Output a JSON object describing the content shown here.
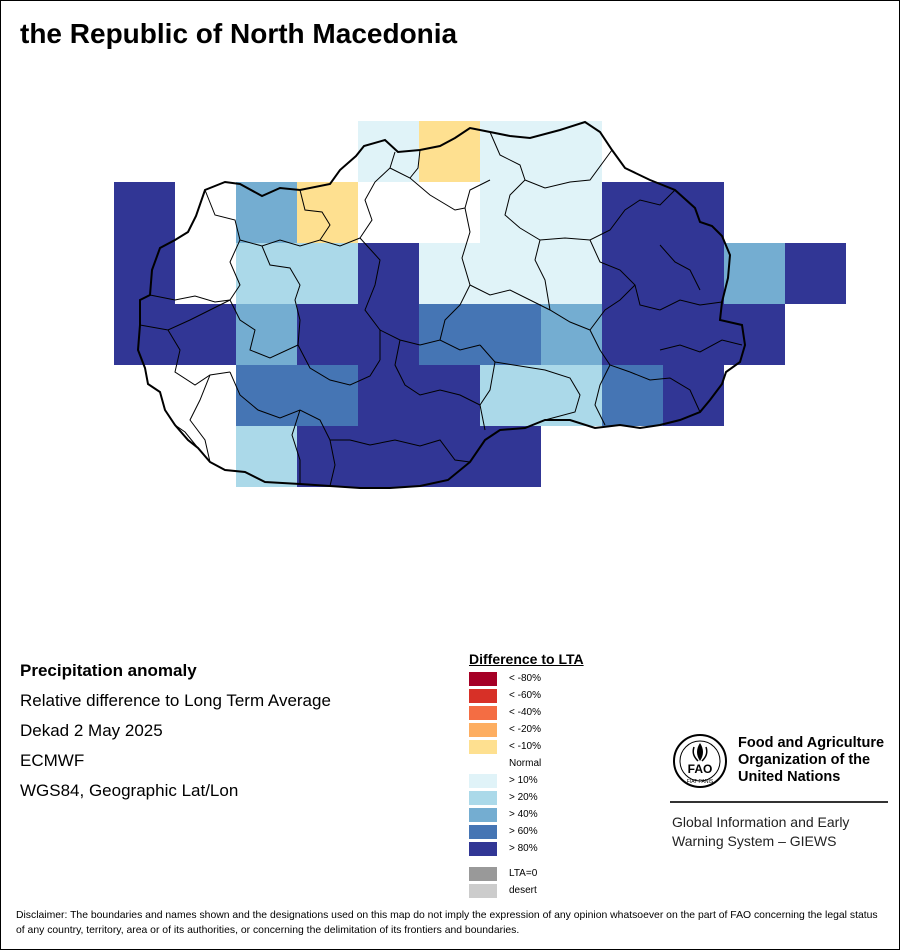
{
  "title": "the Republic of North Macedonia",
  "info": {
    "heading": "Precipitation anomaly",
    "lines": [
      "Relative difference to Long Term Average",
      "Dekad 2 May 2025",
      "ECMWF",
      "WGS84, Geographic Lat/Lon"
    ]
  },
  "legend": {
    "title": "Difference to LTA",
    "items": [
      {
        "label": "< -80%",
        "color": "#a50026"
      },
      {
        "label": "< -60%",
        "color": "#d73027"
      },
      {
        "label": "< -40%",
        "color": "#f46d43"
      },
      {
        "label": "< -20%",
        "color": "#fdae61"
      },
      {
        "label": "< -10%",
        "color": "#fee090"
      },
      {
        "label": "Normal",
        "color": "#ffffff"
      },
      {
        "label": "> 10%",
        "color": "#e0f3f8"
      },
      {
        "label": "> 20%",
        "color": "#abd9e9"
      },
      {
        "label": "> 40%",
        "color": "#74add1"
      },
      {
        "label": "> 60%",
        "color": "#4575b4"
      },
      {
        "label": "> 80%",
        "color": "#313695"
      }
    ],
    "extra": [
      {
        "label": "LTA=0",
        "color": "#999999"
      },
      {
        "label": "desert",
        "color": "#cccccc"
      }
    ]
  },
  "fao": {
    "logo_text": "FAO",
    "motto": "FIAT PANIS",
    "name_lines": [
      "Food and Agriculture",
      "Organization of the",
      "United Nations"
    ],
    "giews_lines": [
      "Global Information and Early",
      "Warning System – GIEWS"
    ]
  },
  "disclaimer": "Disclaimer: The boundaries and names shown and the designations used on this map do not imply the expression of any opinion whatsoever on the part of FAO concerning the legal status of any country, territory, area or of its authorities, or concerning the delimitation of its frontiers and boundaries.",
  "grid": {
    "colors": {
      "A": "#e0f3f8",
      "B": "#abd9e9",
      "C": "#74add1",
      "D": "#4575b4",
      "E": "#313695",
      "Y": "#fee090",
      "W": "#ffffff"
    },
    "rows": [
      "....AYAA....",
      "E.CYWWAAEE..",
      "E.BBEAAAEECE",
      "EECEEDDCEEE.",
      "..DDEEBBDE..",
      "..BEEEE....."
    ]
  }
}
